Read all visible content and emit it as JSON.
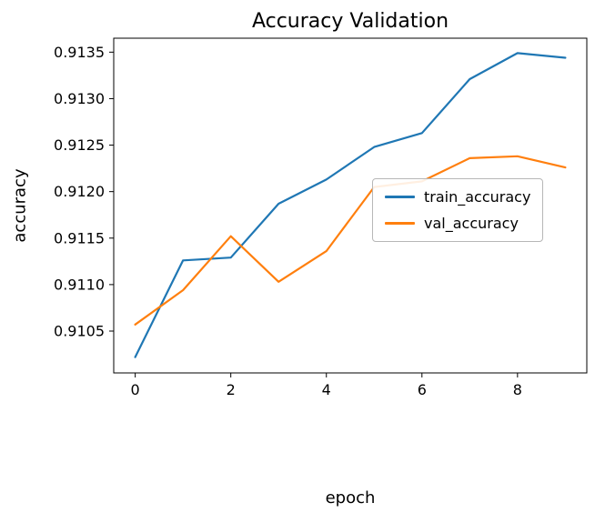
{
  "figure": {
    "title": "Accuracy Validation",
    "xlabel": "epoch",
    "ylabel": "accuracy"
  },
  "chart_data": {
    "type": "line",
    "title": "Accuracy Validation",
    "xlabel": "epoch",
    "ylabel": "accuracy",
    "grid": false,
    "x": [
      0,
      1,
      2,
      3,
      4,
      5,
      6,
      7,
      8,
      9
    ],
    "series": [
      {
        "name": "train_accuracy",
        "color": "#1f77b4",
        "values": [
          0.91022,
          0.91126,
          0.91129,
          0.91187,
          0.91213,
          0.91248,
          0.91263,
          0.91321,
          0.91349,
          0.91344
        ]
      },
      {
        "name": "val_accuracy",
        "color": "#ff7f0e",
        "values": [
          0.91057,
          0.91094,
          0.91152,
          0.91103,
          0.91136,
          0.91205,
          0.91211,
          0.91236,
          0.91238,
          0.91226
        ]
      }
    ],
    "xlim": [
      -0.45,
      9.45
    ],
    "ylim": [
      0.91005,
      0.91365
    ],
    "xticks": {
      "values": [
        0,
        2,
        4,
        6,
        8
      ],
      "labels": [
        "0",
        "2",
        "4",
        "6",
        "8"
      ]
    },
    "yticks": {
      "values": [
        0.9105,
        0.911,
        0.9115,
        0.912,
        0.9125,
        0.913,
        0.9135
      ],
      "labels": [
        "0.9105",
        "0.9110",
        "0.9115",
        "0.9120",
        "0.9125",
        "0.9130",
        "0.9135"
      ]
    },
    "legend": {
      "position": "center right",
      "entries": [
        "train_accuracy",
        "val_accuracy"
      ]
    },
    "frame_color": "#000000"
  }
}
